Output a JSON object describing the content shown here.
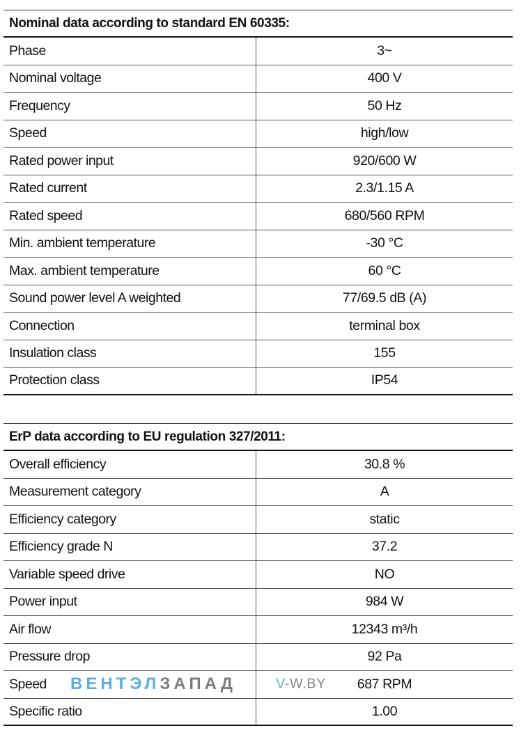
{
  "nominal": {
    "title": "Nominal data according to standard EN 60335:",
    "rows": [
      {
        "label": "Phase",
        "value": "3~"
      },
      {
        "label": "Nominal voltage",
        "value": "400 V"
      },
      {
        "label": "Frequency",
        "value": "50 Hz"
      },
      {
        "label": "Speed",
        "value": "high/low"
      },
      {
        "label": "Rated power input",
        "value": "920/600 W"
      },
      {
        "label": "Rated current",
        "value": "2.3/1.15 A"
      },
      {
        "label": "Rated speed",
        "value": "680/560 RPM"
      },
      {
        "label": "Min. ambient temperature",
        "value": "-30 °C"
      },
      {
        "label": "Max. ambient temperature",
        "value": "60 °C"
      },
      {
        "label": "Sound power level A weighted",
        "value": "77/69.5 dB (A)"
      },
      {
        "label": "Connection",
        "value": "terminal box"
      },
      {
        "label": "Insulation class",
        "value": "155"
      },
      {
        "label": "Protection class",
        "value": "IP54"
      }
    ]
  },
  "erp": {
    "title": "ErP data according to EU regulation 327/2011:",
    "rows": [
      {
        "label": "Overall efficiency",
        "value": "30.8 %"
      },
      {
        "label": "Measurement category",
        "value": "A"
      },
      {
        "label": "Efficiency category",
        "value": "static"
      },
      {
        "label": "Efficiency grade N",
        "value": "37.2"
      },
      {
        "label": "Variable speed drive",
        "value": "NO"
      },
      {
        "label": "Power input",
        "value": "984 W"
      },
      {
        "label": "Air flow",
        "value": "12343 m³/h"
      },
      {
        "label": "Pressure drop",
        "value": "92 Pa"
      },
      {
        "label": "Speed",
        "value": "687 RPM"
      },
      {
        "label": "Specific ratio",
        "value": "1.00"
      }
    ]
  },
  "watermark": {
    "brand_part1": "ВЕНТЭЛ",
    "brand_part2": "ЗАПАД",
    "site_part1": "V-",
    "site_part2": "W.BY",
    "color_blue": "#5aaee0",
    "color_gray": "#7d7d7d"
  }
}
